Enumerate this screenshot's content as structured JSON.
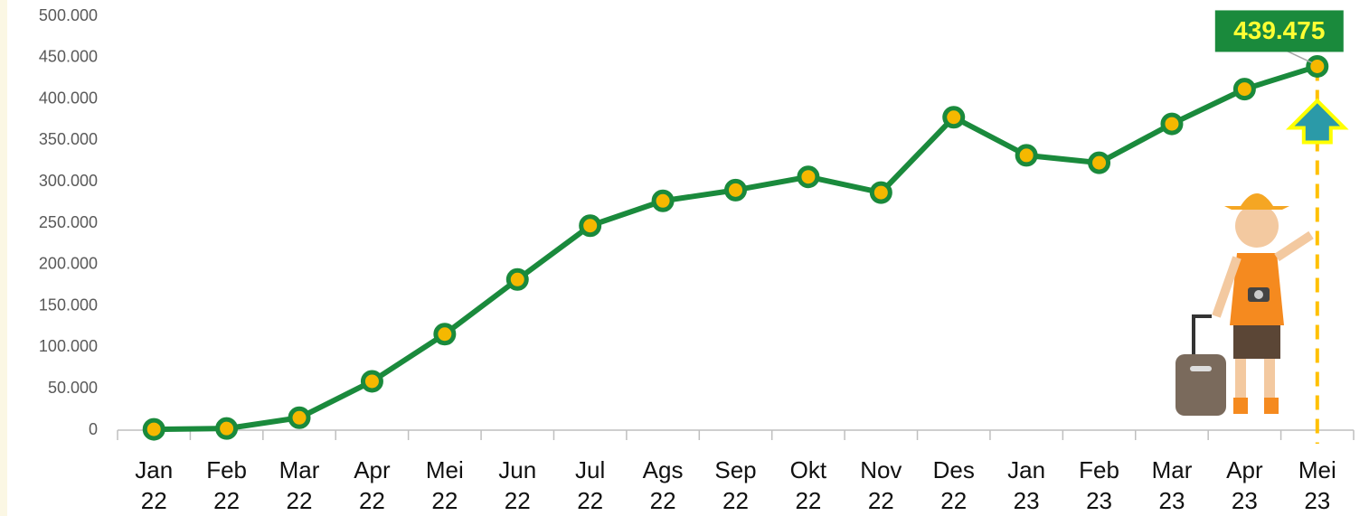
{
  "chart_data": {
    "type": "line",
    "categories": [
      "Jan\n22",
      "Feb\n22",
      "Mar\n22",
      "Apr\n22",
      "Mei\n22",
      "Jun\n22",
      "Jul\n22",
      "Ags\n22",
      "Sep\n22",
      "Okt\n22",
      "Nov\n22",
      "Des\n22",
      "Jan\n23",
      "Feb\n23",
      "Mar\n23",
      "Apr\n23",
      "Mei\n23"
    ],
    "series": [
      {
        "color": "#1a8a3c",
        "marker_color": "#f5b800",
        "values": [
          1000,
          2000,
          15000,
          59000,
          116000,
          182000,
          247000,
          277000,
          290000,
          306000,
          287000,
          378000,
          332000,
          323000,
          370000,
          412000,
          439475
        ],
        "value_labels": [
          null,
          null,
          null,
          null,
          null,
          null,
          null,
          null,
          null,
          null,
          null,
          null,
          null,
          null,
          null,
          null,
          "439.475"
        ]
      }
    ],
    "ylim": [
      0,
      500000
    ],
    "yticks": [
      {
        "value": 0,
        "label": "0"
      },
      {
        "value": 50000,
        "label": "50.000"
      },
      {
        "value": 100000,
        "label": "100.000"
      },
      {
        "value": 150000,
        "label": "150.000"
      },
      {
        "value": 200000,
        "label": "200.000"
      },
      {
        "value": 250000,
        "label": "250.000"
      },
      {
        "value": 300000,
        "label": "300.000"
      },
      {
        "value": 350000,
        "label": "350.000"
      },
      {
        "value": 400000,
        "label": "400.000"
      },
      {
        "value": 450000,
        "label": "450.000"
      },
      {
        "value": 500000,
        "label": "500.000"
      }
    ],
    "grid": false
  }
}
